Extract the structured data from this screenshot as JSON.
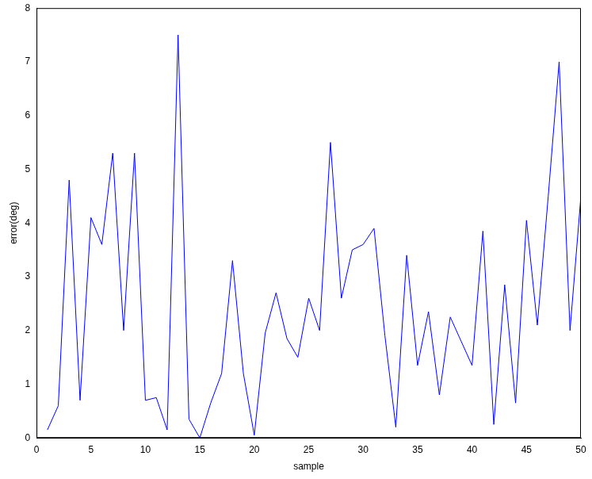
{
  "chart_data": {
    "type": "line",
    "x_label": "sample",
    "y_label": "error(deg)",
    "x": [
      1,
      2,
      3,
      4,
      5,
      6,
      7,
      8,
      9,
      10,
      11,
      12,
      13,
      14,
      15,
      16,
      17,
      18,
      19,
      20,
      21,
      22,
      23,
      24,
      25,
      26,
      27,
      28,
      29,
      30,
      31,
      32,
      33,
      34,
      35,
      36,
      37,
      38,
      39,
      40,
      41,
      42,
      43,
      44,
      45,
      46,
      47,
      48,
      49,
      50
    ],
    "values": [
      0.15,
      0.6,
      4.8,
      0.7,
      4.1,
      3.6,
      5.3,
      2.0,
      5.3,
      0.7,
      0.75,
      0.15,
      7.5,
      0.35,
      0.0,
      0.65,
      1.2,
      3.3,
      1.2,
      0.05,
      1.95,
      2.7,
      1.85,
      1.5,
      2.6,
      2.0,
      5.5,
      2.6,
      3.5,
      3.6,
      3.9,
      1.9,
      0.2,
      3.4,
      1.35,
      2.35,
      0.8,
      2.25,
      1.8,
      1.35,
      3.85,
      0.25,
      2.85,
      0.65,
      4.05,
      2.1,
      4.5,
      7.0,
      2.0,
      4.5
    ],
    "color": "#0000ff",
    "xlim": [
      0,
      50
    ],
    "xticks": [
      0,
      5,
      10,
      15,
      20,
      25,
      30,
      35,
      40,
      45,
      50
    ],
    "ylim": [
      0,
      8
    ],
    "yticks": [
      0,
      1,
      2,
      3,
      4,
      5,
      6,
      7,
      8
    ],
    "grid": false
  }
}
